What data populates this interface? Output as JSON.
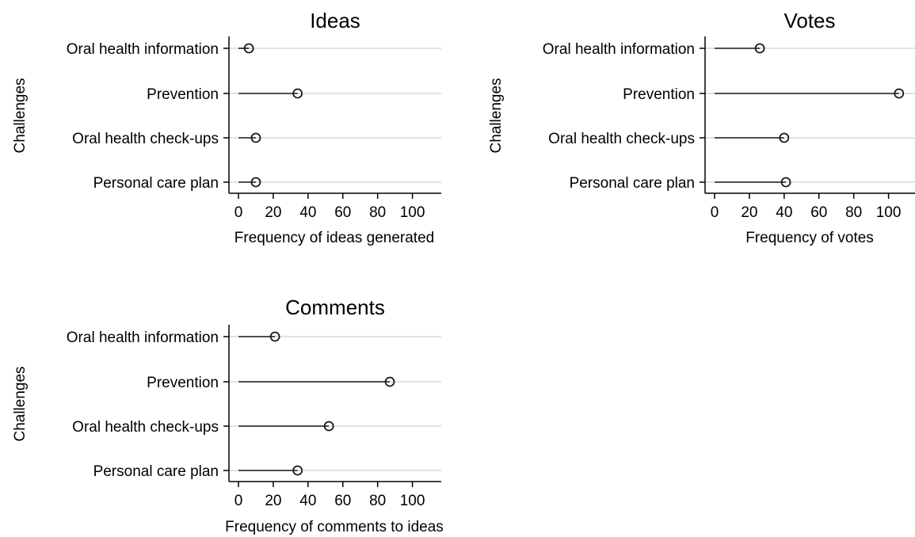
{
  "chart_data": [
    {
      "type": "lollipop",
      "title": "Ideas",
      "xlabel": "Frequency of ideas generated",
      "ylabel": "Challenges",
      "categories": [
        "Oral health information",
        "Prevention",
        "Oral health check-ups",
        "Personal care plan"
      ],
      "values": [
        6,
        34,
        10,
        10
      ],
      "xlim": [
        0,
        120
      ],
      "xticks": [
        0,
        20,
        40,
        60,
        80,
        100
      ],
      "grid": "horizontal"
    },
    {
      "type": "lollipop",
      "title": "Votes",
      "xlabel": "Frequency of votes",
      "ylabel": "Challenges",
      "categories": [
        "Oral health information",
        "Prevention",
        "Oral health check-ups",
        "Personal care plan"
      ],
      "values": [
        26,
        106,
        40,
        41
      ],
      "xlim": [
        0,
        120
      ],
      "xticks": [
        0,
        20,
        40,
        60,
        80,
        100
      ],
      "grid": "horizontal"
    },
    {
      "type": "lollipop",
      "title": "Comments",
      "xlabel": "Frequency of comments to ideas",
      "ylabel": "Challenges",
      "categories": [
        "Oral health information",
        "Prevention",
        "Oral health check-ups",
        "Personal care plan"
      ],
      "values": [
        21,
        87,
        52,
        34
      ],
      "xlim": [
        0,
        120
      ],
      "xticks": [
        0,
        20,
        40,
        60,
        80,
        100
      ],
      "grid": "horizontal"
    }
  ],
  "colors": {
    "stem": "#1a1a1a",
    "marker": "#1a1a1a",
    "grid": "#d0d0d0",
    "axis": "#000000"
  }
}
